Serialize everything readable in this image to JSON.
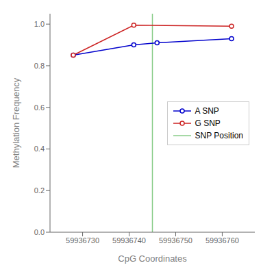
{
  "chart_data": {
    "type": "line",
    "xlabel": "CpG Coordinates",
    "ylabel": "Methylation Frequency",
    "series": [
      {
        "name": "A SNP",
        "color": "#0000CC",
        "marker": "circle",
        "x": [
          59936728,
          59936741,
          59936746,
          59936762
        ],
        "values": [
          0.851,
          0.9,
          0.91,
          0.93
        ]
      },
      {
        "name": "G SNP",
        "color": "#CC2222",
        "marker": "circle",
        "x": [
          59936728,
          59936741,
          59936762
        ],
        "values": [
          0.851,
          0.995,
          0.99
        ]
      }
    ],
    "vlines": [
      {
        "name": "SNP Position",
        "color": "#88CC88",
        "x": 59936745
      }
    ],
    "xlim": [
      59936723,
      59936767
    ],
    "ylim": [
      0.0,
      1.05
    ],
    "xticks": [
      59936730,
      59936740,
      59936750,
      59936760
    ],
    "yticks": [
      {
        "value": 0.0,
        "label": "0.0"
      },
      0.2,
      0.4,
      0.6,
      0.8,
      {
        "value": 1.0,
        "label": "1.0"
      }
    ],
    "legend": "center right",
    "grid": false
  }
}
